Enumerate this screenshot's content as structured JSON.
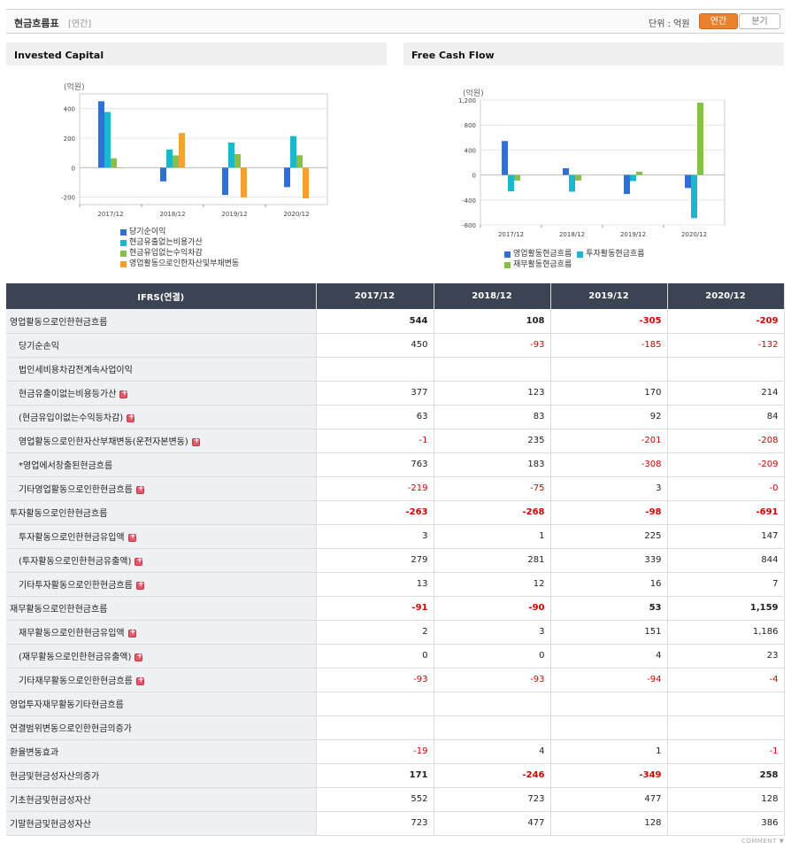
{
  "header": {
    "title": "현금흐름표",
    "subtitle": "[연간]",
    "unit": "단위 : 억원",
    "tab_annual": "연간",
    "tab_quarter": "분기"
  },
  "left_panel": {
    "title": "Invested Capital"
  },
  "right_panel": {
    "title": "Free Cash Flow"
  },
  "chart_data": [
    {
      "type": "bar",
      "title": "Invested Capital",
      "ylabel": "(억원)",
      "categories": [
        "2017/12",
        "2018/12",
        "2019/12",
        "2020/12"
      ],
      "ylim": [
        -250,
        500
      ],
      "yticks": [
        400,
        200,
        0,
        -200
      ],
      "series": [
        {
          "name": "당기순이익",
          "color": "#2e6fd8",
          "values": [
            450,
            -93,
            -185,
            -132
          ]
        },
        {
          "name": "현금유출없는비용가산",
          "color": "#1ab8cf",
          "values": [
            377,
            123,
            170,
            214
          ]
        },
        {
          "name": "현금유입없는수익차감",
          "color": "#86c04a",
          "values": [
            63,
            83,
            92,
            84
          ]
        },
        {
          "name": "영업활동으로인한자산및부채변동",
          "color": "#f5a031",
          "values": [
            -1,
            235,
            -201,
            -208
          ]
        }
      ]
    },
    {
      "type": "bar",
      "title": "Free Cash Flow",
      "ylabel": "(억원)",
      "categories": [
        "2017/12",
        "2018/12",
        "2019/12",
        "2020/12"
      ],
      "ylim": [
        -800,
        1200
      ],
      "yticks": [
        1200,
        800,
        400,
        0,
        -400,
        -800
      ],
      "series": [
        {
          "name": "영업활동현금흐름",
          "color": "#2e6fd8",
          "values": [
            544,
            108,
            -305,
            -209
          ]
        },
        {
          "name": "투자활동현금흐름",
          "color": "#1ab8cf",
          "values": [
            -263,
            -268,
            -98,
            -691
          ]
        },
        {
          "name": "재무활동현금흐름",
          "color": "#86c04a",
          "values": [
            -91,
            -90,
            53,
            1159
          ]
        }
      ]
    }
  ],
  "table": {
    "header_label": "IFRS(연결)",
    "columns": [
      "2017/12",
      "2018/12",
      "2019/12",
      "2020/12"
    ],
    "rows": [
      {
        "label": "영업활동으로인한현금흐름",
        "level": 0,
        "bold": true,
        "plus": false,
        "values": [
          "544",
          "108",
          "-305",
          "-209"
        ]
      },
      {
        "label": "당기순손익",
        "level": 1,
        "bold": false,
        "plus": false,
        "values": [
          "450",
          "-93",
          "-185",
          "-132"
        ]
      },
      {
        "label": "법인세비용차감전계속사업이익",
        "level": 1,
        "bold": false,
        "plus": false,
        "values": [
          "",
          "",
          "",
          ""
        ]
      },
      {
        "label": "현금유출이없는비용등가산",
        "level": 1,
        "bold": false,
        "plus": true,
        "values": [
          "377",
          "123",
          "170",
          "214"
        ]
      },
      {
        "label": "(현금유입이없는수익등차감)",
        "level": 1,
        "bold": false,
        "plus": true,
        "values": [
          "63",
          "83",
          "92",
          "84"
        ]
      },
      {
        "label": "영업활동으로인한자산부채변동(운전자본변동)",
        "level": 1,
        "bold": false,
        "plus": true,
        "values": [
          "-1",
          "235",
          "-201",
          "-208"
        ]
      },
      {
        "label": "*영업에서창출된현금흐름",
        "level": 1,
        "bold": false,
        "plus": false,
        "values": [
          "763",
          "183",
          "-308",
          "-209"
        ]
      },
      {
        "label": "기타영업활동으로인한현금흐름",
        "level": 1,
        "bold": false,
        "plus": true,
        "values": [
          "-219",
          "-75",
          "3",
          "-0"
        ]
      },
      {
        "label": "투자활동으로인한현금흐름",
        "level": 0,
        "bold": true,
        "plus": false,
        "values": [
          "-263",
          "-268",
          "-98",
          "-691"
        ]
      },
      {
        "label": "투자활동으로인한현금유입액",
        "level": 1,
        "bold": false,
        "plus": true,
        "values": [
          "3",
          "1",
          "225",
          "147"
        ]
      },
      {
        "label": "(투자활동으로인한현금유출액)",
        "level": 1,
        "bold": false,
        "plus": true,
        "values": [
          "279",
          "281",
          "339",
          "844"
        ]
      },
      {
        "label": "기타투자활동으로인한현금흐름",
        "level": 1,
        "bold": false,
        "plus": true,
        "values": [
          "13",
          "12",
          "16",
          "7"
        ]
      },
      {
        "label": "재무활동으로인한현금흐름",
        "level": 0,
        "bold": true,
        "plus": false,
        "values": [
          "-91",
          "-90",
          "53",
          "1,159"
        ]
      },
      {
        "label": "재무활동으로인한현금유입액",
        "level": 1,
        "bold": false,
        "plus": true,
        "values": [
          "2",
          "3",
          "151",
          "1,186"
        ]
      },
      {
        "label": "(재무활동으로인한현금유출액)",
        "level": 1,
        "bold": false,
        "plus": true,
        "values": [
          "0",
          "0",
          "4",
          "23"
        ]
      },
      {
        "label": "기타재무활동으로인한현금흐름",
        "level": 1,
        "bold": false,
        "plus": true,
        "values": [
          "-93",
          "-93",
          "-94",
          "-4"
        ]
      },
      {
        "label": "영업투자재무활동기타현금흐름",
        "level": 0,
        "bold": false,
        "plus": false,
        "values": [
          "",
          "",
          "",
          ""
        ]
      },
      {
        "label": "연결범위변동으로인한현금의증가",
        "level": 0,
        "bold": false,
        "plus": false,
        "values": [
          "",
          "",
          "",
          ""
        ]
      },
      {
        "label": "환율변동효과",
        "level": 0,
        "bold": false,
        "plus": false,
        "values": [
          "-19",
          "4",
          "1",
          "-1"
        ]
      },
      {
        "label": "현금및현금성자산의증가",
        "level": 0,
        "bold": true,
        "plus": false,
        "values": [
          "171",
          "-246",
          "-349",
          "258"
        ]
      },
      {
        "label": "기초현금및현금성자산",
        "level": 0,
        "bold": false,
        "plus": false,
        "values": [
          "552",
          "723",
          "477",
          "128"
        ]
      },
      {
        "label": "기말현금및현금성자산",
        "level": 0,
        "bold": false,
        "plus": false,
        "values": [
          "723",
          "477",
          "128",
          "386"
        ]
      }
    ]
  },
  "footer": {
    "comment": "COMMENT ▼"
  }
}
